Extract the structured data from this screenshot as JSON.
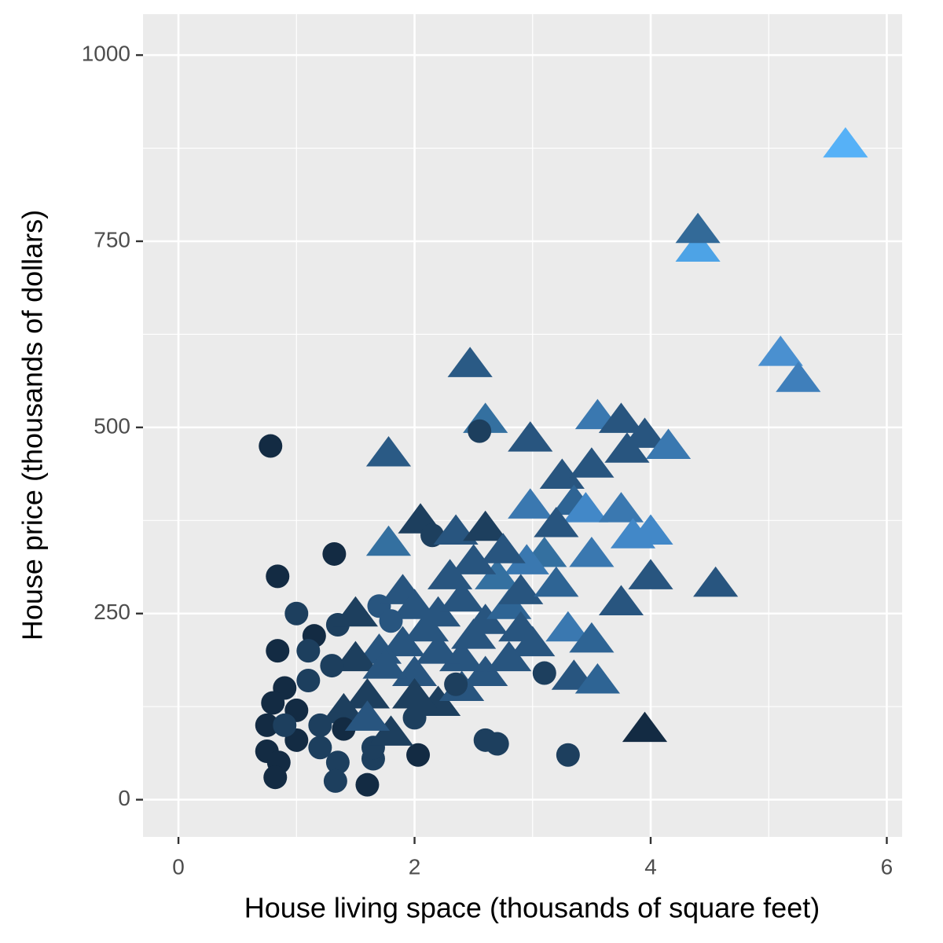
{
  "chart_data": {
    "type": "scatter",
    "xlabel": "House living space (thousands of square feet)",
    "ylabel": "House price (thousands of dollars)",
    "xlim": [
      -0.3,
      6.13
    ],
    "ylim": [
      -50,
      1055
    ],
    "xticks": [
      0,
      2,
      4,
      6
    ],
    "yticks": [
      0,
      250,
      500,
      750,
      1000
    ],
    "xminor": [
      1,
      3,
      5
    ],
    "yminor": [
      125,
      375,
      625,
      875
    ],
    "grid": true,
    "x": [
      5.65,
      4.4,
      4.4,
      5.1,
      5.25,
      2.47,
      2.6,
      2.55,
      1.78,
      0.78,
      2.98,
      3.55,
      3.75,
      3.95,
      4.15,
      3.8,
      3.25,
      3.5,
      3.35,
      3.45,
      3.75,
      3.85,
      4.0,
      2.98,
      3.2,
      3.1,
      2.95,
      3.5,
      4.55,
      4.0,
      3.75,
      3.3,
      3.5,
      3.35,
      3.55,
      3.95,
      3.3,
      2.7,
      2.6,
      3.1,
      1.78,
      2.05,
      2.15,
      2.35,
      2.6,
      1.32,
      0.84,
      1.0,
      0.84,
      1.35,
      1.15,
      1.1,
      1.5,
      1.7,
      1.9,
      2.0,
      2.2,
      2.4,
      2.6,
      2.8,
      2.9,
      3.0,
      2.7,
      2.5,
      2.3,
      2.1,
      1.9,
      1.7,
      1.5,
      1.3,
      1.1,
      0.9,
      0.8,
      0.75,
      0.75,
      0.85,
      0.82,
      1.0,
      1.2,
      1.35,
      1.33,
      1.6,
      1.65,
      1.65,
      2.03,
      1.8,
      2.0,
      2.2,
      2.4,
      2.6,
      2.8,
      2.4,
      2.0,
      1.6,
      1.4,
      1.2,
      1.0,
      0.9,
      1.4,
      1.6,
      2.2,
      1.8,
      2.5,
      2.35,
      2.0,
      1.75,
      2.9,
      3.2,
      2.75
    ],
    "y": [
      880,
      740,
      765,
      600,
      565,
      585,
      510,
      495,
      465,
      475,
      485,
      515,
      510,
      490,
      475,
      470,
      435,
      450,
      400,
      390,
      390,
      355,
      360,
      395,
      370,
      330,
      320,
      330,
      290,
      300,
      265,
      230,
      215,
      165,
      160,
      95,
      60,
      75,
      80,
      170,
      345,
      375,
      355,
      360,
      365,
      330,
      300,
      250,
      200,
      235,
      220,
      200,
      250,
      260,
      280,
      260,
      250,
      270,
      240,
      260,
      230,
      210,
      300,
      320,
      300,
      230,
      210,
      200,
      190,
      180,
      160,
      150,
      130,
      100,
      65,
      50,
      30,
      80,
      70,
      50,
      25,
      20,
      55,
      70,
      60,
      90,
      110,
      130,
      150,
      170,
      190,
      190,
      170,
      140,
      120,
      100,
      120,
      100,
      95,
      110,
      200,
      240,
      220,
      155,
      140,
      180,
      280,
      290,
      335
    ],
    "shape": [
      "t",
      "t",
      "t",
      "t",
      "t",
      "t",
      "t",
      "c",
      "t",
      "c",
      "t",
      "t",
      "t",
      "t",
      "t",
      "t",
      "t",
      "t",
      "t",
      "t",
      "t",
      "t",
      "t",
      "t",
      "t",
      "t",
      "t",
      "t",
      "t",
      "t",
      "t",
      "t",
      "t",
      "t",
      "t",
      "t",
      "c",
      "c",
      "c",
      "c",
      "t",
      "t",
      "c",
      "t",
      "t",
      "c",
      "c",
      "c",
      "c",
      "c",
      "c",
      "c",
      "t",
      "c",
      "t",
      "t",
      "t",
      "t",
      "t",
      "t",
      "t",
      "t",
      "t",
      "t",
      "t",
      "t",
      "t",
      "t",
      "t",
      "c",
      "c",
      "c",
      "c",
      "c",
      "c",
      "c",
      "c",
      "c",
      "c",
      "c",
      "c",
      "c",
      "c",
      "c",
      "c",
      "t",
      "c",
      "t",
      "t",
      "t",
      "t",
      "t",
      "t",
      "t",
      "t",
      "c",
      "c",
      "c",
      "c",
      "t",
      "t",
      "c",
      "t",
      "c",
      "t",
      "t",
      "t",
      "t",
      "t"
    ],
    "color": [
      "#56B1F7",
      "#4da3e6",
      "#336a98",
      "#4a90d0",
      "#3f7fbb",
      "#2a5a85",
      "#3470a0",
      "#1d3f5e",
      "#2a5a85",
      "#132B43",
      "#28557f",
      "#3a78b0",
      "#28557f",
      "#28557f",
      "#3a78b0",
      "#28557f",
      "#28557f",
      "#28557f",
      "#2e6494",
      "#4288c8",
      "#3a78b0",
      "#4288c8",
      "#4288c8",
      "#3a78b0",
      "#28557f",
      "#3470a0",
      "#3a78b0",
      "#3a78b0",
      "#28557f",
      "#28557f",
      "#28557f",
      "#3a78b0",
      "#2e6494",
      "#28557f",
      "#2e6494",
      "#132B43",
      "#1d3f5e",
      "#1d3f5e",
      "#1d3f5e",
      "#1d3f5e",
      "#3470a0",
      "#1d3f5e",
      "#1d3f5e",
      "#28557f",
      "#1d3f5e",
      "#132B43",
      "#132B43",
      "#1d3f5e",
      "#132B43",
      "#1d3f5e",
      "#132B43",
      "#1d3f5e",
      "#1d3f5e",
      "#28557f",
      "#28557f",
      "#28557f",
      "#28557f",
      "#28557f",
      "#28557f",
      "#2e6494",
      "#28557f",
      "#28557f",
      "#3470a0",
      "#28557f",
      "#28557f",
      "#28557f",
      "#28557f",
      "#28557f",
      "#1d3f5e",
      "#1d3f5e",
      "#1d3f5e",
      "#132B43",
      "#132B43",
      "#132B43",
      "#132B43",
      "#132B43",
      "#132B43",
      "#132B43",
      "#1d3f5e",
      "#1d3f5e",
      "#1d3f5e",
      "#132B43",
      "#1d3f5e",
      "#1d3f5e",
      "#132B43",
      "#1d3f5e",
      "#1d3f5e",
      "#1d3f5e",
      "#28557f",
      "#28557f",
      "#28557f",
      "#28557f",
      "#28557f",
      "#1d3f5e",
      "#1d3f5e",
      "#1d3f5e",
      "#132B43",
      "#1d3f5e",
      "#132B43",
      "#28557f",
      "#28557f",
      "#28557f",
      "#28557f",
      "#1d3f5e",
      "#1d3f5e",
      "#28557f",
      "#28557f",
      "#2e6494",
      "#28557f"
    ]
  }
}
